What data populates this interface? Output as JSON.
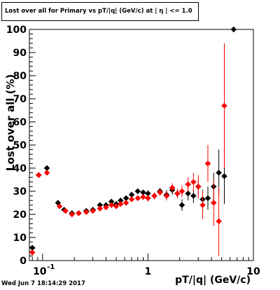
{
  "title": "Lost over all for Primary vs pT/|q| (GeV/c) at | η | <= 1.0",
  "footer": "Wed Jun  7 18:14:29 2017",
  "chart_data": {
    "type": "scatter",
    "title": "Lost over all for Primary vs pT/|q| (GeV/c) at | η | <= 1.0",
    "xlabel": "pT/|q| (GeV/c)",
    "ylabel": "Lost over all (%)",
    "xscale": "log",
    "xlim": [
      0.075,
      10
    ],
    "ylim": [
      0,
      100
    ],
    "x_tick_labels": [
      "10^-1",
      "1",
      "10"
    ],
    "y_tick_labels": [
      "0",
      "10",
      "20",
      "30",
      "40",
      "50",
      "60",
      "70",
      "80",
      "90",
      "100"
    ],
    "grid": false,
    "legend": "none",
    "series": [
      {
        "color": "#000000",
        "marker": "diamond",
        "points": [
          {
            "x": 0.08,
            "y": 5.5,
            "err": 0
          },
          {
            "x": 0.092,
            "y": 37.0,
            "err": 0.5
          },
          {
            "x": 0.11,
            "y": 40.0,
            "err": 0.5
          },
          {
            "x": 0.14,
            "y": 25.0,
            "err": 1
          },
          {
            "x": 0.16,
            "y": 22.0,
            "err": 1
          },
          {
            "x": 0.19,
            "y": 20.5,
            "err": 1
          },
          {
            "x": 0.22,
            "y": 20.5,
            "err": 1
          },
          {
            "x": 0.26,
            "y": 21.5,
            "err": 1
          },
          {
            "x": 0.3,
            "y": 22.0,
            "err": 1
          },
          {
            "x": 0.35,
            "y": 24.0,
            "err": 1
          },
          {
            "x": 0.4,
            "y": 24.0,
            "err": 1
          },
          {
            "x": 0.45,
            "y": 25.5,
            "err": 1
          },
          {
            "x": 0.5,
            "y": 24.5,
            "err": 1
          },
          {
            "x": 0.55,
            "y": 26.0,
            "err": 1
          },
          {
            "x": 0.62,
            "y": 27.0,
            "err": 1
          },
          {
            "x": 0.7,
            "y": 28.5,
            "err": 1
          },
          {
            "x": 0.8,
            "y": 30.0,
            "err": 1
          },
          {
            "x": 0.9,
            "y": 29.5,
            "err": 1
          },
          {
            "x": 1.0,
            "y": 29.0,
            "err": 1.5
          },
          {
            "x": 1.15,
            "y": 28.0,
            "err": 1.5
          },
          {
            "x": 1.3,
            "y": 30.0,
            "err": 1.5
          },
          {
            "x": 1.5,
            "y": 28.5,
            "err": 2
          },
          {
            "x": 1.7,
            "y": 30.5,
            "err": 2
          },
          {
            "x": 1.9,
            "y": 29.0,
            "err": 2
          },
          {
            "x": 2.1,
            "y": 24.0,
            "err": 2.5
          },
          {
            "x": 2.4,
            "y": 29.0,
            "err": 3
          },
          {
            "x": 2.7,
            "y": 28.0,
            "err": 3
          },
          {
            "x": 3.0,
            "y": 32.0,
            "err": 3
          },
          {
            "x": 3.3,
            "y": 26.5,
            "err": 4
          },
          {
            "x": 3.7,
            "y": 27.0,
            "err": 5
          },
          {
            "x": 4.2,
            "y": 32.0,
            "err": 6
          },
          {
            "x": 4.7,
            "y": 38.0,
            "err": 10
          },
          {
            "x": 5.3,
            "y": 36.5,
            "err": 12
          },
          {
            "x": 6.5,
            "y": 100.0,
            "err": 0
          }
        ]
      },
      {
        "color": "#ff0000",
        "marker": "diamond",
        "points": [
          {
            "x": 0.08,
            "y": 3.5,
            "err": 0
          },
          {
            "x": 0.092,
            "y": 37.0,
            "err": 0.5
          },
          {
            "x": 0.11,
            "y": 38.0,
            "err": 0.5
          },
          {
            "x": 0.145,
            "y": 23.5,
            "err": 1
          },
          {
            "x": 0.165,
            "y": 21.5,
            "err": 1
          },
          {
            "x": 0.19,
            "y": 20.0,
            "err": 1
          },
          {
            "x": 0.22,
            "y": 20.5,
            "err": 1
          },
          {
            "x": 0.26,
            "y": 21.0,
            "err": 1
          },
          {
            "x": 0.3,
            "y": 21.5,
            "err": 1
          },
          {
            "x": 0.35,
            "y": 22.5,
            "err": 1
          },
          {
            "x": 0.4,
            "y": 23.0,
            "err": 1
          },
          {
            "x": 0.45,
            "y": 24.0,
            "err": 1
          },
          {
            "x": 0.5,
            "y": 23.5,
            "err": 1
          },
          {
            "x": 0.55,
            "y": 24.5,
            "err": 1
          },
          {
            "x": 0.62,
            "y": 25.0,
            "err": 1
          },
          {
            "x": 0.7,
            "y": 26.5,
            "err": 1
          },
          {
            "x": 0.8,
            "y": 27.0,
            "err": 1
          },
          {
            "x": 0.9,
            "y": 27.5,
            "err": 1
          },
          {
            "x": 1.0,
            "y": 27.0,
            "err": 1.5
          },
          {
            "x": 1.15,
            "y": 28.0,
            "err": 1.5
          },
          {
            "x": 1.3,
            "y": 29.5,
            "err": 1.5
          },
          {
            "x": 1.5,
            "y": 28.0,
            "err": 2
          },
          {
            "x": 1.7,
            "y": 31.5,
            "err": 2
          },
          {
            "x": 1.9,
            "y": 29.0,
            "err": 2
          },
          {
            "x": 2.1,
            "y": 30.0,
            "err": 2.5
          },
          {
            "x": 2.4,
            "y": 33.0,
            "err": 3
          },
          {
            "x": 2.7,
            "y": 34.0,
            "err": 4
          },
          {
            "x": 3.0,
            "y": 32.0,
            "err": 5
          },
          {
            "x": 3.3,
            "y": 24.0,
            "err": 6
          },
          {
            "x": 3.7,
            "y": 42.0,
            "err": 8
          },
          {
            "x": 4.2,
            "y": 25.0,
            "err": 10
          },
          {
            "x": 4.7,
            "y": 17.0,
            "err": 15
          },
          {
            "x": 5.3,
            "y": 67.0,
            "err": 27
          }
        ]
      }
    ]
  }
}
